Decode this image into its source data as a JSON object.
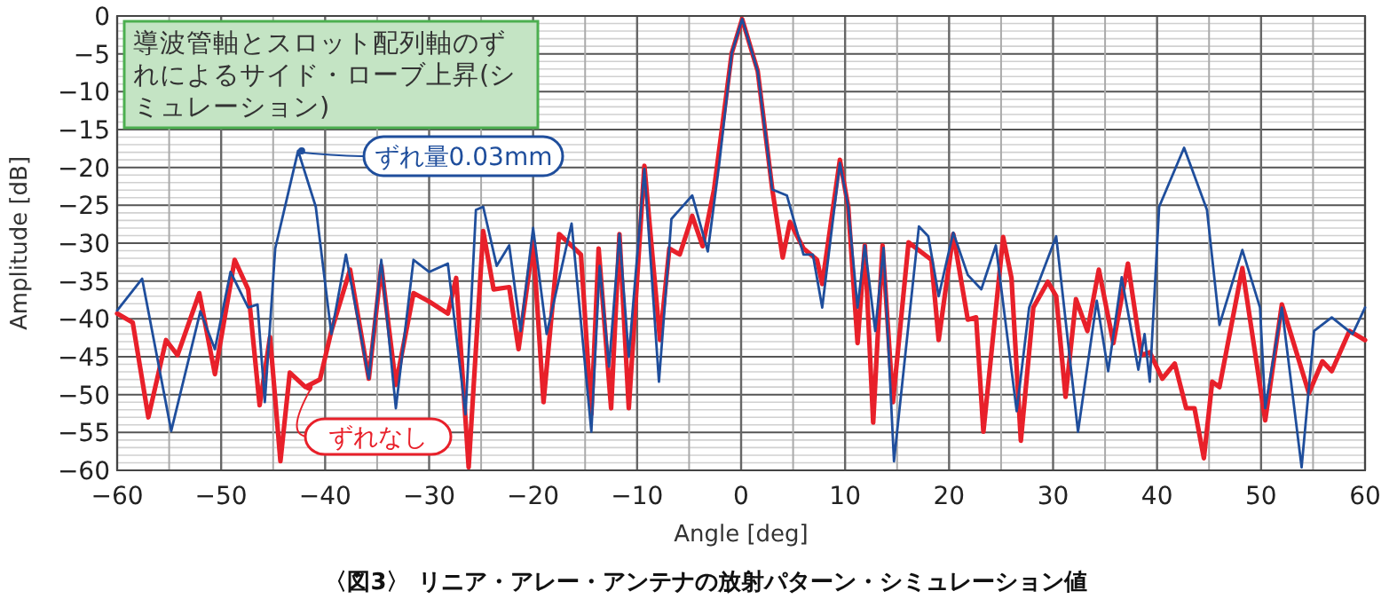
{
  "chart_data": {
    "type": "line",
    "title": "〈図3〉 リニア・アレー・アンテナの放射パターン・シミュレーション値",
    "xlabel": "Angle [deg]",
    "ylabel": "Amplitude [dB]",
    "annotations": [
      "導波管軸とスロット配列軸のずれによるサイド・ローブ上昇(シミュレーション)"
    ],
    "xlim": [
      -60,
      60
    ],
    "ylim": [
      -60,
      0
    ],
    "xticks": [
      {
        "value": -60,
        "label": "−60"
      },
      {
        "value": -50,
        "label": "−50"
      },
      {
        "value": -40,
        "label": "−40"
      },
      {
        "value": -30,
        "label": "−30"
      },
      {
        "value": -20,
        "label": "−20"
      },
      {
        "value": -10,
        "label": "−10"
      },
      0,
      10,
      20,
      30,
      40,
      50,
      60
    ],
    "yticks": [
      0,
      {
        "value": -5,
        "label": "−5"
      },
      {
        "value": -10,
        "label": "−10"
      },
      {
        "value": -15,
        "label": "−15"
      },
      {
        "value": -20,
        "label": "−20"
      },
      {
        "value": -25,
        "label": "−25"
      },
      {
        "value": -30,
        "label": "−30"
      },
      {
        "value": -35,
        "label": "−35"
      },
      {
        "value": -40,
        "label": "−40"
      },
      {
        "value": -45,
        "label": "−45"
      },
      {
        "value": -50,
        "label": "−50"
      },
      {
        "value": -55,
        "label": "−55"
      },
      {
        "value": -60,
        "label": "−60"
      }
    ],
    "grid": true,
    "legend": "left",
    "line_style": "solid",
    "marker": "none",
    "series": [
      {
        "name": "ずれなし",
        "color": "#e8202a",
        "x": [
          -60,
          -58.5,
          -57,
          -55.3,
          -54.2,
          -52.1,
          -50.6,
          -48.7,
          -47.4,
          -46.3,
          -45.3,
          -44.3,
          -43.4,
          -41.9,
          -40.5,
          -39.4,
          -37.6,
          -35.8,
          -34.6,
          -33.2,
          -31.5,
          -30,
          -28.2,
          -27.4,
          -26.2,
          -24.8,
          -23.8,
          -22.3,
          -21.4,
          -20,
          -19,
          -17.5,
          -15.4,
          -14.4,
          -13.7,
          -12.5,
          -11.7,
          -10.8,
          -9.3,
          -7.8,
          -6.9,
          -5.9,
          -4.7,
          -3.7,
          -2.6,
          -0.9,
          0.1,
          1.6,
          3,
          4,
          4.7,
          6,
          7.3,
          7.8,
          9.5,
          10.3,
          11.2,
          11.9,
          12.7,
          13.6,
          14.6,
          16.1,
          18.3,
          19,
          20.4,
          21.8,
          22.6,
          23.3,
          25.2,
          26,
          26.9,
          28.1,
          29.5,
          30.3,
          31.2,
          32.2,
          33.3,
          34.4,
          35.8,
          37.2,
          38.5,
          39.3,
          40.5,
          41.7,
          42.8,
          43.6,
          44.5,
          45.3,
          46,
          48.2,
          50.4,
          52,
          54.6,
          55.9,
          56.8,
          58.5,
          60
        ],
        "values": [
          -39.3,
          -40.5,
          -53,
          -42.8,
          -44.8,
          -36.6,
          -47.3,
          -32.2,
          -36.1,
          -51.4,
          -42.4,
          -58.8,
          -47.1,
          -49,
          -48,
          -41.6,
          -33.5,
          -47.9,
          -33,
          -48.7,
          -36.6,
          -37.7,
          -39.3,
          -34.6,
          -59.6,
          -28.4,
          -36.1,
          -35.8,
          -44,
          -29.9,
          -51,
          -28.8,
          -31.5,
          -52.6,
          -30.7,
          -51.8,
          -28.8,
          -51.8,
          -19.8,
          -42.8,
          -30.7,
          -31.5,
          -26.4,
          -30.4,
          -22.9,
          -4.9,
          -0.4,
          -7.3,
          -22.9,
          -31.9,
          -27.2,
          -30.7,
          -32.2,
          -35.4,
          -19,
          -25.2,
          -43.2,
          -30.3,
          -53.7,
          -30.3,
          -51,
          -29.9,
          -32.2,
          -42.8,
          -28.8,
          -40.1,
          -39.8,
          -54.9,
          -29.2,
          -34.6,
          -56.1,
          -38.5,
          -35.1,
          -37,
          -50.3,
          -37.4,
          -41.6,
          -33.5,
          -43.2,
          -32.7,
          -44.8,
          -44.4,
          -47.9,
          -45.9,
          -51.8,
          -51.8,
          -58.4,
          -48.3,
          -49,
          -33.3,
          -53.4,
          -38.1,
          -49.8,
          -45.6,
          -46.9,
          -41.6,
          -42.8
        ]
      },
      {
        "name": "ずれ量0.03mm",
        "color": "#1f4e9c",
        "x": [
          -60,
          -57.6,
          -54.8,
          -52,
          -50.6,
          -49.1,
          -47.4,
          -46.5,
          -45.8,
          -44.8,
          -42.6,
          -40.9,
          -39.4,
          -38,
          -35.8,
          -34.6,
          -33.2,
          -31.5,
          -30,
          -28.2,
          -26.5,
          -25.5,
          -24.8,
          -23.5,
          -22.3,
          -21.2,
          -20,
          -18.7,
          -16.3,
          -14.4,
          -13.6,
          -12.7,
          -11.7,
          -10.8,
          -9.3,
          -7.9,
          -6.7,
          -4.7,
          -3.2,
          -2.1,
          -0.9,
          0.1,
          1.6,
          3,
          4.4,
          6,
          6.9,
          7.8,
          9.5,
          10.3,
          11.2,
          11.9,
          12.9,
          13.7,
          14.7,
          17.1,
          18,
          19,
          20.4,
          21.8,
          23.1,
          24.5,
          26.5,
          27.7,
          30.3,
          32.4,
          34.2,
          35.3,
          36.6,
          38.2,
          38.8,
          39.3,
          40.2,
          42.6,
          44.8,
          46,
          48.2,
          49.9,
          50.4,
          52,
          53.9,
          55.1,
          56.8,
          58.8,
          60
        ],
        "values": [
          -38.9,
          -34.7,
          -54.8,
          -39,
          -44,
          -33.8,
          -38.5,
          -38.1,
          -51,
          -30.7,
          -17.8,
          -25.2,
          -42,
          -31.5,
          -47.9,
          -32.2,
          -51.8,
          -32.2,
          -33.8,
          -32.7,
          -52.6,
          -25.6,
          -25.2,
          -33,
          -30.3,
          -41.6,
          -28,
          -42,
          -27.4,
          -54.9,
          -33,
          -46.3,
          -28.8,
          -45,
          -20.2,
          -48.3,
          -26.8,
          -23.7,
          -31.1,
          -19.5,
          -4.9,
          -0.4,
          -7.3,
          -22.9,
          -23.7,
          -31.5,
          -31.5,
          -38.5,
          -19.4,
          -25.2,
          -38.5,
          -30.3,
          -41.6,
          -30.6,
          -58.8,
          -27.8,
          -29.1,
          -37,
          -28.6,
          -34.2,
          -36.1,
          -30.3,
          -52.2,
          -38.5,
          -29.1,
          -54.9,
          -37.6,
          -46.9,
          -34.5,
          -46.7,
          -42,
          -48.3,
          -25.2,
          -17.4,
          -25.6,
          -40.8,
          -30.9,
          -38.5,
          -51.8,
          -38.5,
          -59.6,
          -41.6,
          -39.8,
          -42,
          -38.5
        ]
      }
    ]
  }
}
